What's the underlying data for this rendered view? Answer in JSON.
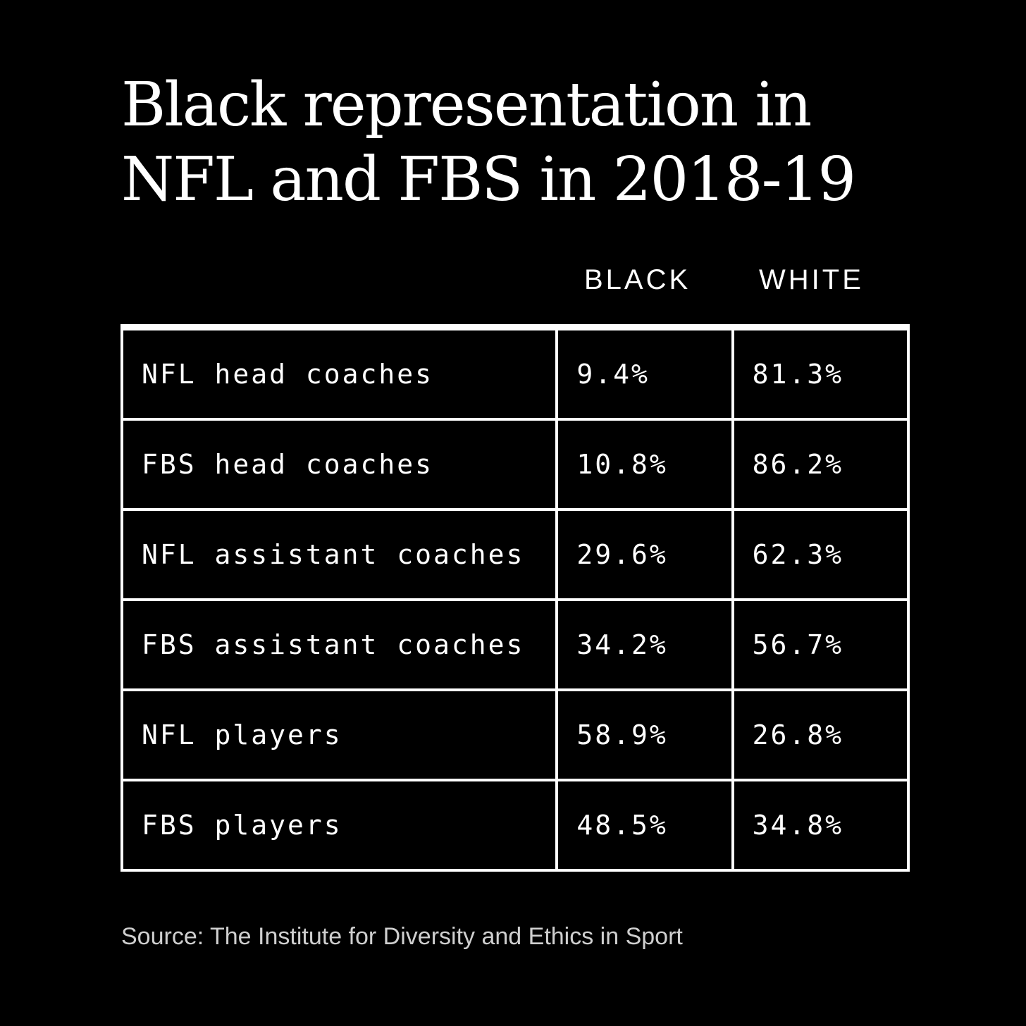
{
  "title": "Black representation in NFL and FBS in 2018-19",
  "colors": {
    "background": "#000000",
    "text": "#ffffff",
    "source_text": "#cfcfcf",
    "grid": "#ffffff"
  },
  "chart_data": {
    "type": "table",
    "title": "Black representation in NFL and FBS in 2018-19",
    "columns": [
      "BLACK",
      "WHITE"
    ],
    "rows": [
      {
        "label": "NFL head coaches",
        "values": [
          "9.4%",
          "81.3%"
        ]
      },
      {
        "label": "FBS head coaches",
        "values": [
          "10.8%",
          "86.2%"
        ]
      },
      {
        "label": "NFL assistant coaches",
        "values": [
          "29.6%",
          "62.3%"
        ]
      },
      {
        "label": "FBS assistant coaches",
        "values": [
          "34.2%",
          "56.7%"
        ]
      },
      {
        "label": "NFL players",
        "values": [
          "58.9%",
          "26.8%"
        ]
      },
      {
        "label": "FBS players",
        "values": [
          "48.5%",
          "34.8%"
        ]
      }
    ],
    "source": "Source: The Institute for Diversity and Ethics in Sport"
  }
}
